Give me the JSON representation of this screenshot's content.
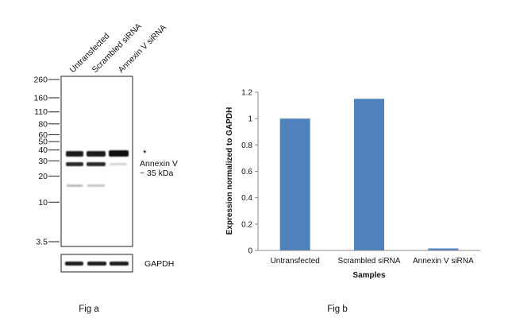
{
  "figure_a": {
    "lanes": [
      "Untransfected",
      "Scrambled siRNA",
      "Annexin V siRNA"
    ],
    "markers": [
      {
        "label": "260",
        "kda": 260
      },
      {
        "label": "160",
        "kda": 160
      },
      {
        "label": "110",
        "kda": 110
      },
      {
        "label": "80",
        "kda": 80
      },
      {
        "label": "60",
        "kda": 60
      },
      {
        "label": "50",
        "kda": 50
      },
      {
        "label": "40",
        "kda": 40
      },
      {
        "label": "30",
        "kda": 30
      },
      {
        "label": "20",
        "kda": 20
      },
      {
        "label": "10",
        "kda": 10
      },
      {
        "label": "3.5",
        "kda": 3.5
      }
    ],
    "asterisk": "*",
    "target_label": "Annexin V",
    "target_size": "~ 35 kDa",
    "loading_control": "GAPDH",
    "caption": "Fig a"
  },
  "chart_data": {
    "type": "bar",
    "categories": [
      "Untransfected",
      "Scrambled siRNA",
      "Annexin V siRNA"
    ],
    "values": [
      1.0,
      1.15,
      0.015
    ],
    "xlabel": "Samples",
    "ylabel": "Expression normalized to GAPDH",
    "ylim": [
      0,
      1.2
    ],
    "yticks": [
      {
        "value": 0,
        "label": "0"
      },
      {
        "value": 0.2,
        "label": "0.2"
      },
      {
        "value": 0.4,
        "label": "0.4"
      },
      {
        "value": 0.6,
        "label": "0.6"
      },
      {
        "value": 0.8,
        "label": "0.8"
      },
      {
        "value": 1.0,
        "label": "1"
      },
      {
        "value": 1.2,
        "label": "1.2"
      }
    ],
    "grid": false,
    "bar_color": "#4f81bd",
    "caption": "Fig b"
  }
}
